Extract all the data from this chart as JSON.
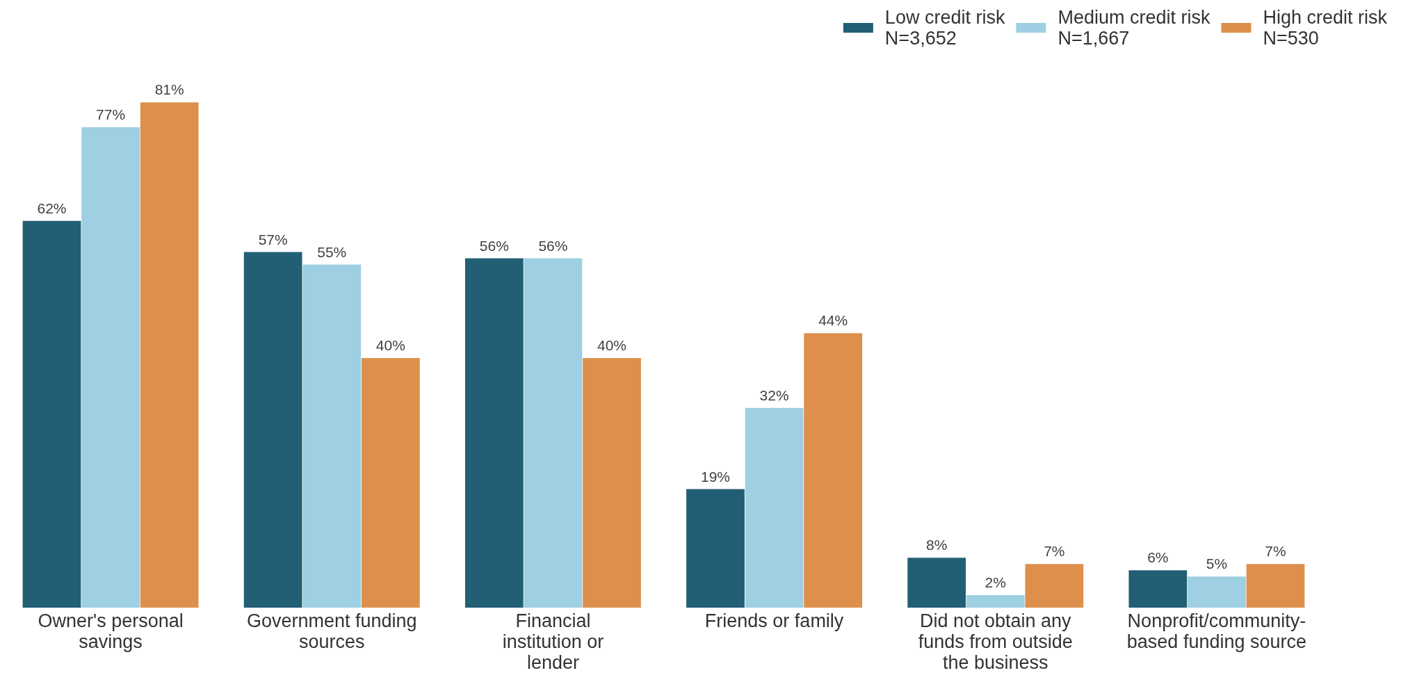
{
  "chart_data": {
    "type": "bar",
    "categories": [
      "Owner's personal\nsavings",
      "Government funding\nsources",
      "Financial\ninstitution or\nlender",
      "Friends or family",
      "Did not obtain any\nfunds from outside\nthe business",
      "Nonprofit/community-\nbased funding source"
    ],
    "series": [
      {
        "name": "Low credit risk\nN=3,652",
        "color": "#225f75",
        "values": [
          62,
          57,
          56,
          19,
          8,
          6
        ],
        "value_labels": [
          "62%",
          "57%",
          "56%",
          "19%",
          "8%",
          "6%"
        ]
      },
      {
        "name": "Medium credit risk\nN=1,667",
        "color": "#9ecfe2",
        "values": [
          77,
          55,
          56,
          32,
          2,
          5
        ],
        "value_labels": [
          "77%",
          "55%",
          "56%",
          "32%",
          "2%",
          "5%"
        ]
      },
      {
        "name": "High credit risk\nN=530",
        "color": "#de8f4b",
        "values": [
          81,
          40,
          40,
          44,
          7,
          7
        ],
        "value_labels": [
          "81%",
          "40%",
          "40%",
          "44%",
          "7%",
          "7%"
        ]
      }
    ],
    "legend": "top right",
    "grid": false,
    "tick_labels": "x"
  }
}
